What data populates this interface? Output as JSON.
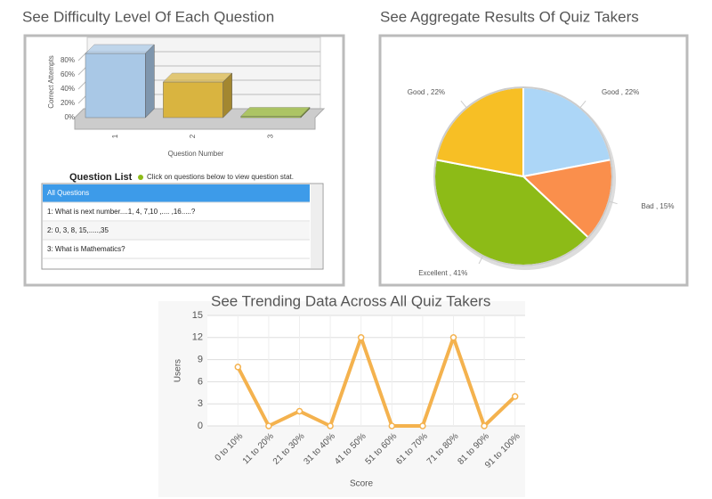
{
  "chart_data": [
    {
      "type": "bar3d",
      "title": "See Difficulty Level Of Each Question",
      "y_label": "Correct Attempts",
      "x_label": "Question Number",
      "categories": [
        "1",
        "2",
        "3"
      ],
      "values": [
        90,
        50,
        2
      ],
      "colors": [
        "#a9c8e6",
        "#d9b440",
        "#9fc23a"
      ],
      "ylim": [
        0,
        100
      ],
      "yticks": [
        {
          "value": 0,
          "label": "0%"
        },
        {
          "value": 20,
          "label": "20%"
        },
        {
          "value": 40,
          "label": "40%"
        },
        {
          "value": 60,
          "label": "60%"
        },
        {
          "value": 80,
          "label": "80%"
        }
      ],
      "grid": true
    },
    {
      "type": "pie",
      "title": "See Aggregate Results Of Quiz Takers",
      "values": [
        22,
        15,
        41,
        22
      ],
      "value_labels": [
        "Good , 22%",
        "Bad , 15%",
        "Excellent , 41%",
        "Good , 22%"
      ],
      "colors": [
        "#acd6f7",
        "#fa8f4c",
        "#8dbb17",
        "#f7bf25"
      ]
    },
    {
      "type": "line",
      "title": "See Trending Data Across All Quiz Takers",
      "y_label": "Users",
      "x_label": "Score",
      "categories": [
        "0 to 10%",
        "11 to 20%",
        "21 to 30%",
        "31 to 40%",
        "41 to 50%",
        "51 to 60%",
        "61 to 70%",
        "71 to 80%",
        "81 to 90%",
        "91 to 100%"
      ],
      "values": [
        8,
        0,
        2,
        0,
        12,
        0,
        0,
        12,
        0,
        4
      ],
      "color": "#f4b24e",
      "ylim": [
        0,
        15
      ],
      "yticks": [
        0,
        3,
        6,
        9,
        12,
        15
      ],
      "grid": true
    }
  ],
  "question_list": {
    "title": "Question List",
    "hint": "Click on questions below to view question stat.",
    "items": [
      "All Questions",
      "1: What is next number....1, 4, 7,10 ,.... ,16.....?",
      "2: 0, 3, 8, 15,.....,35",
      "3: What is Mathematics?"
    ]
  }
}
